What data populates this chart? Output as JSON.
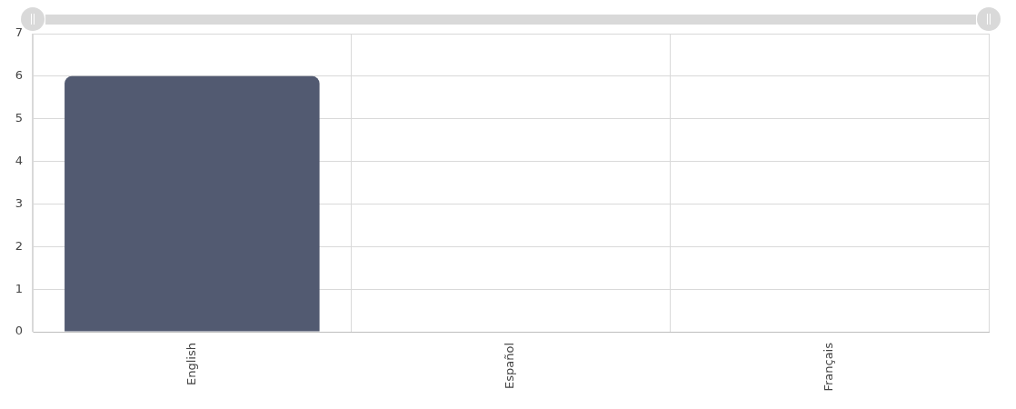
{
  "chart_data": {
    "type": "bar",
    "categories": [
      "English",
      "Español",
      "Français"
    ],
    "values": [
      6,
      0,
      0
    ],
    "color": "#525a71",
    "ylim": [
      0,
      7
    ],
    "yticks": [
      0,
      1,
      2,
      3,
      4,
      5,
      6,
      7
    ],
    "grid": true
  }
}
